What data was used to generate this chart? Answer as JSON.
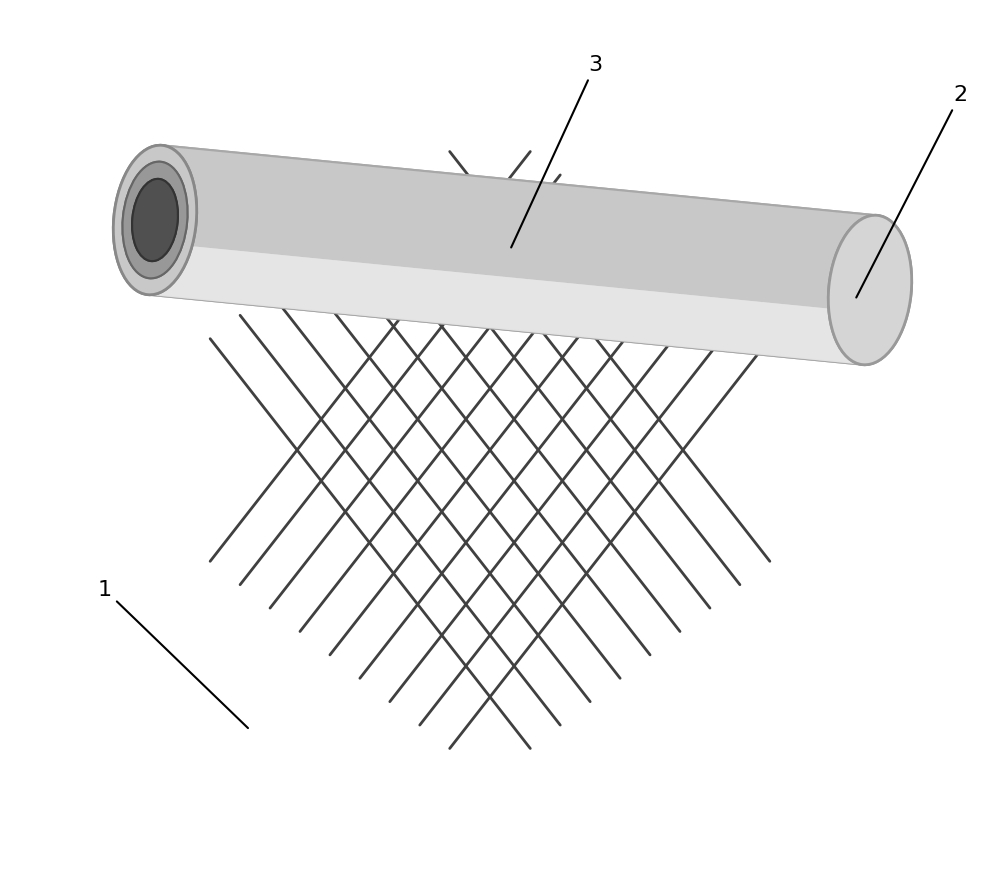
{
  "bg_color": "#ffffff",
  "tube_color": "#c8c8c8",
  "tube_shadow_color": "#a8a8a8",
  "tube_highlight_color": "#e8e8e8",
  "inner_ring_color": "#b0b0b0",
  "inner_hole_color": "#505050",
  "crack_color": "#404040",
  "label_color": "#000000",
  "fig_width": 10.0,
  "fig_height": 8.94,
  "dpi": 100,
  "label1_text": "1",
  "label2_text": "2",
  "label3_text": "3",
  "crack_linewidth": 2.0,
  "tube_linewidth": 1.5
}
